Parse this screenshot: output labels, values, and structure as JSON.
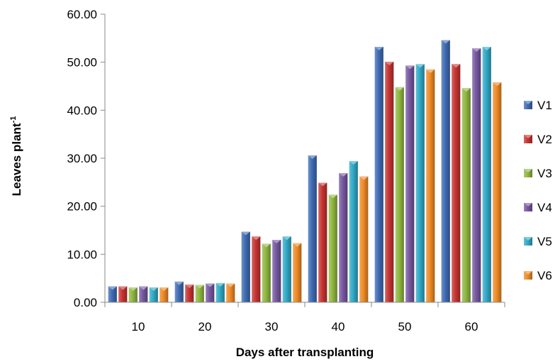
{
  "chart_data": {
    "type": "bar",
    "categories": [
      "10",
      "20",
      "30",
      "40",
      "50",
      "60"
    ],
    "series": [
      {
        "name": "V1",
        "color": "#3e6bb4",
        "values": [
          3.3,
          4.3,
          14.7,
          30.6,
          53.2,
          54.6
        ]
      },
      {
        "name": "V2",
        "color": "#c63431",
        "values": [
          3.3,
          3.7,
          13.7,
          24.9,
          50.1,
          49.6
        ]
      },
      {
        "name": "V3",
        "color": "#8fb73f",
        "values": [
          3.1,
          3.6,
          12.2,
          22.4,
          44.8,
          44.6
        ]
      },
      {
        "name": "V4",
        "color": "#7657a0",
        "values": [
          3.3,
          3.9,
          13.0,
          26.9,
          49.3,
          52.9
        ]
      },
      {
        "name": "V5",
        "color": "#2fa9c6",
        "values": [
          3.1,
          4.0,
          13.7,
          29.4,
          49.6,
          53.2
        ]
      },
      {
        "name": "V6",
        "color": "#ef8a24",
        "values": [
          3.1,
          3.9,
          12.3,
          26.2,
          48.5,
          45.8
        ]
      }
    ],
    "ylim": [
      0,
      60
    ],
    "yticks": [
      "0.00",
      "10.00",
      "20.00",
      "30.00",
      "40.00",
      "50.00",
      "60.00"
    ],
    "xlabel": "Days  after transplanting",
    "ylabel_main": "Leaves  plant",
    "ylabel_sup": "-1",
    "legend_position": "right",
    "grid": false
  }
}
